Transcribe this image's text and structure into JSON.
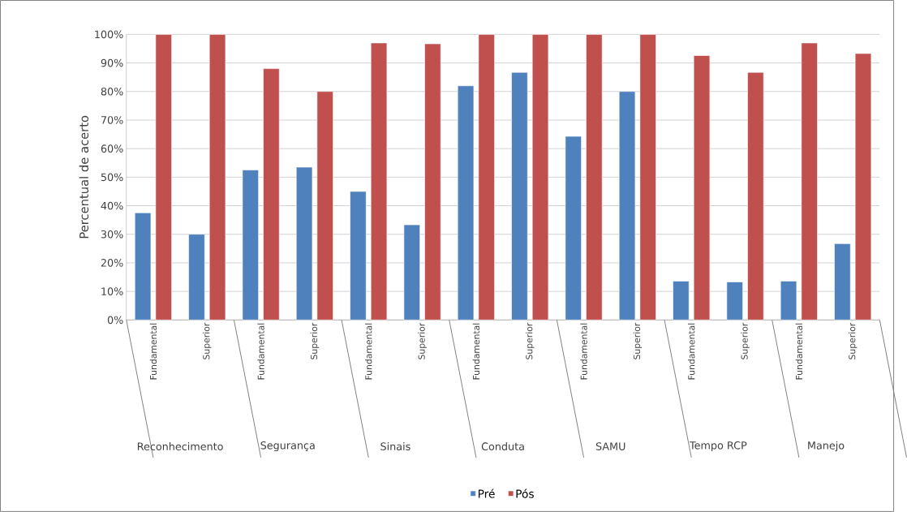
{
  "chart_data": {
    "type": "bar",
    "ylabel": "Percentual de acerto",
    "categories": [
      "Fundamental",
      "Superior",
      "Fundamental",
      "Superior",
      "Fundamental",
      "Superior",
      "Fundamental",
      "Superior",
      "Fundamental",
      "Superior",
      "Fundamental",
      "Superior",
      "Fundamental",
      "Superior"
    ],
    "series": [
      {
        "name": "Pré",
        "color": "#4f81bd",
        "values": [
          37.5,
          30,
          52.5,
          53.5,
          45,
          33.3,
          82,
          86.7,
          64.3,
          80,
          13.6,
          13.3,
          13.6,
          26.7
        ]
      },
      {
        "name": "Pós",
        "color": "#c0504d",
        "values": [
          100,
          100,
          88,
          80,
          97,
          96.7,
          100,
          100,
          100,
          100,
          92.6,
          86.7,
          97,
          93.3
        ]
      }
    ],
    "annotations": [
      "Reconhecimento",
      "Segurança",
      "Sinais",
      "Conduta",
      "SAMU",
      "Tempo RCP",
      "Manejo"
    ],
    "ylim": [
      0,
      100
    ],
    "yticks": [
      {
        "value": 0,
        "label": "0%"
      },
      {
        "value": 10,
        "label": "10%"
      },
      {
        "value": 20,
        "label": "20%"
      },
      {
        "value": 30,
        "label": "30%"
      },
      {
        "value": 40,
        "label": "40%"
      },
      {
        "value": 50,
        "label": "50%"
      },
      {
        "value": 60,
        "label": "60%"
      },
      {
        "value": 70,
        "label": "70%"
      },
      {
        "value": 80,
        "label": "80%"
      },
      {
        "value": 90,
        "label": "90%"
      },
      {
        "value": 100,
        "label": "100%"
      }
    ],
    "grid": "y",
    "legend": "bottom"
  }
}
